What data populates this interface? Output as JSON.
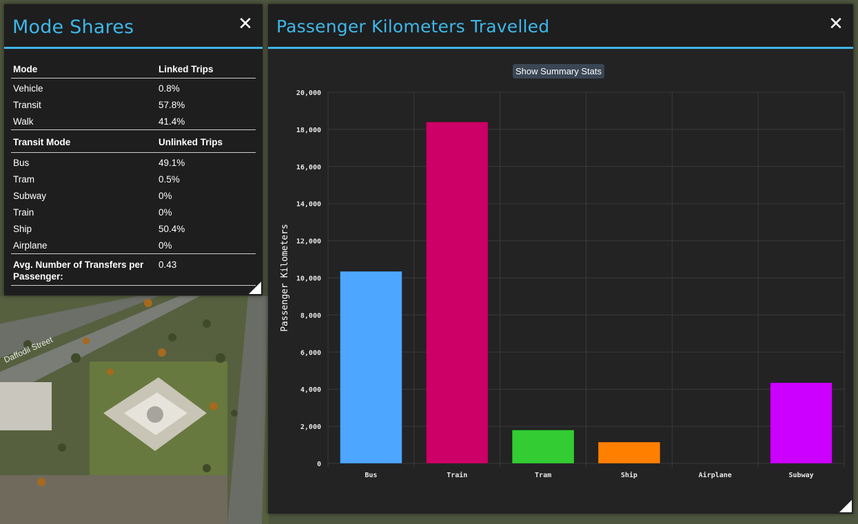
{
  "mode_shares": {
    "title": "Mode Shares",
    "close_label": "✕",
    "linked_header": {
      "col1": "Mode",
      "col2": "Linked Trips"
    },
    "linked_rows": [
      {
        "mode": "Vehicle",
        "value": "0.8%"
      },
      {
        "mode": "Transit",
        "value": "57.8%"
      },
      {
        "mode": "Walk",
        "value": "41.4%"
      }
    ],
    "unlinked_header": {
      "col1": "Transit Mode",
      "col2": "Unlinked Trips"
    },
    "unlinked_rows": [
      {
        "mode": "Bus",
        "value": "49.1%"
      },
      {
        "mode": "Tram",
        "value": "0.5%"
      },
      {
        "mode": "Subway",
        "value": "0%"
      },
      {
        "mode": "Train",
        "value": "0%"
      },
      {
        "mode": "Ship",
        "value": "50.4%"
      },
      {
        "mode": "Airplane",
        "value": "0%"
      }
    ],
    "transfers": {
      "label": "Avg. Number of Transfers per Passenger:",
      "value": "0.43"
    }
  },
  "pkt": {
    "title": "Passenger Kilometers Travelled",
    "close_label": "✕",
    "summary_button": "Show Summary Stats"
  },
  "map_labels": {
    "street": "Daffodil Street"
  },
  "chart_data": {
    "type": "bar",
    "title": "",
    "xlabel": "",
    "ylabel": "Passenger Kilometers",
    "categories": [
      "Bus",
      "Train",
      "Tram",
      "Ship",
      "Airplane",
      "Subway"
    ],
    "values": [
      10350,
      18400,
      1800,
      1150,
      0,
      4350
    ],
    "colors": [
      "#4da6ff",
      "#cc0066",
      "#33cc33",
      "#ff8000",
      "#999999",
      "#cc00ff"
    ],
    "ylim": [
      0,
      20000
    ],
    "yticks": [
      "0",
      "2,000",
      "4,000",
      "6,000",
      "8,000",
      "10,000",
      "12,000",
      "14,000",
      "16,000",
      "18,000",
      "20,000"
    ],
    "grid": true,
    "legend": "none"
  }
}
